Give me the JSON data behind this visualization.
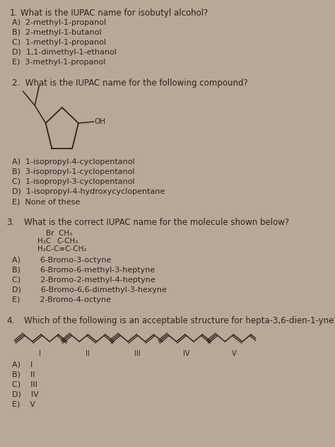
{
  "bg_color": "#b8a898",
  "paper_color": "#e8e0d0",
  "text_color": "#2a2520",
  "questions": [
    {
      "number": "1.",
      "question": "What is the IUPAC name for isobutyl alcohol?",
      "options": [
        "A)  2-methyl-1-propanol",
        "B)  2-methyl-1-butanol",
        "C)  1-methyl-1-propanol",
        "D)  1,1-dimethyl-1-ethanol",
        "E)  3-methyl-1-propanol"
      ]
    },
    {
      "number": "2.",
      "question": "What is the IUPAC name for the following compound?",
      "options": [
        "A)  1-isopropyl-4-cyclopentanol",
        "B)  3-isopropyl-1-cyclopentanol",
        "C)  1-isopropyl-3-cyclopentanol",
        "D)  1-isopropyl-4-hydroxycyclopentane",
        "E)  None of these"
      ]
    },
    {
      "number": "3.",
      "question": "What is the correct IUPAC name for the molecule shown below?",
      "options": [
        "A)        6-Bromo-3-octyne",
        "B)        6-Bromo-6-methyl-3-heptyne",
        "C)        2-Bromo-2-methyl-4-heptyne",
        "D)        6-Bromo-6,6-dimethyl-3-hexyne",
        "E)        2-Bromo-4-octyne"
      ]
    },
    {
      "number": "4.",
      "question": "Which of the following is an acceptable structure for hepta-3,6-dien-1-yne?",
      "roman_labels": [
        "I",
        "II",
        "III",
        "IV",
        "V"
      ],
      "options": [
        "A)    I",
        "B)    II",
        "C)    III",
        "D)    IV",
        "E)    V"
      ]
    }
  ]
}
